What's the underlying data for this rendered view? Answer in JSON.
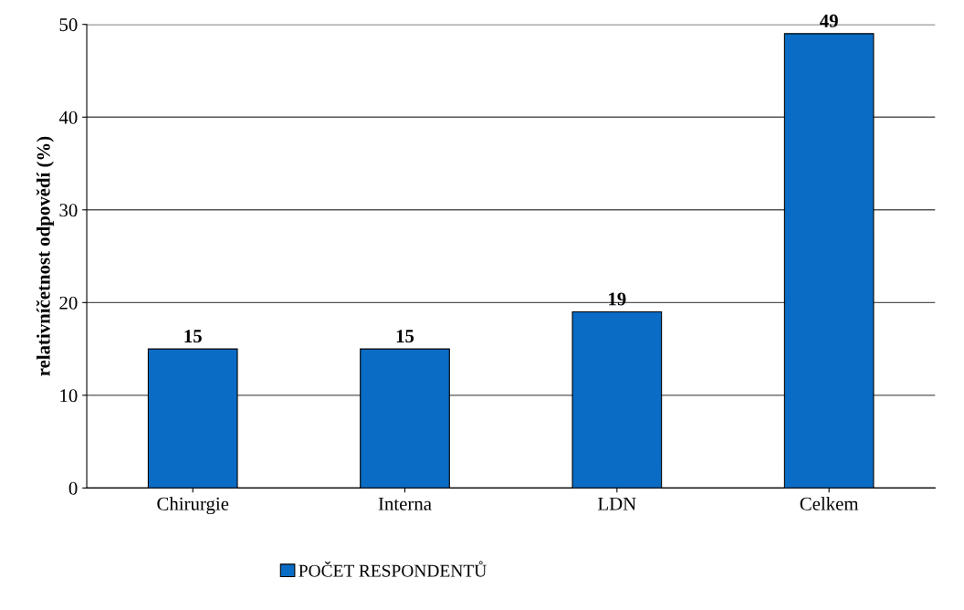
{
  "chart_data": {
    "type": "bar",
    "ylabel": "relativníčetnost odpovědí (%)",
    "categories": [
      "Chirurgie",
      "Interna",
      "LDN",
      "Celkem"
    ],
    "series": [
      {
        "name": "POČET RESPONDENTŮ",
        "color": "#0a6cc4",
        "values": [
          15,
          15,
          19,
          49
        ]
      }
    ],
    "ylim": [
      0,
      50
    ],
    "yticks": [
      0,
      10,
      20,
      30,
      40,
      50
    ],
    "grid": "y",
    "legend": "bottom",
    "data_labels": true
  }
}
